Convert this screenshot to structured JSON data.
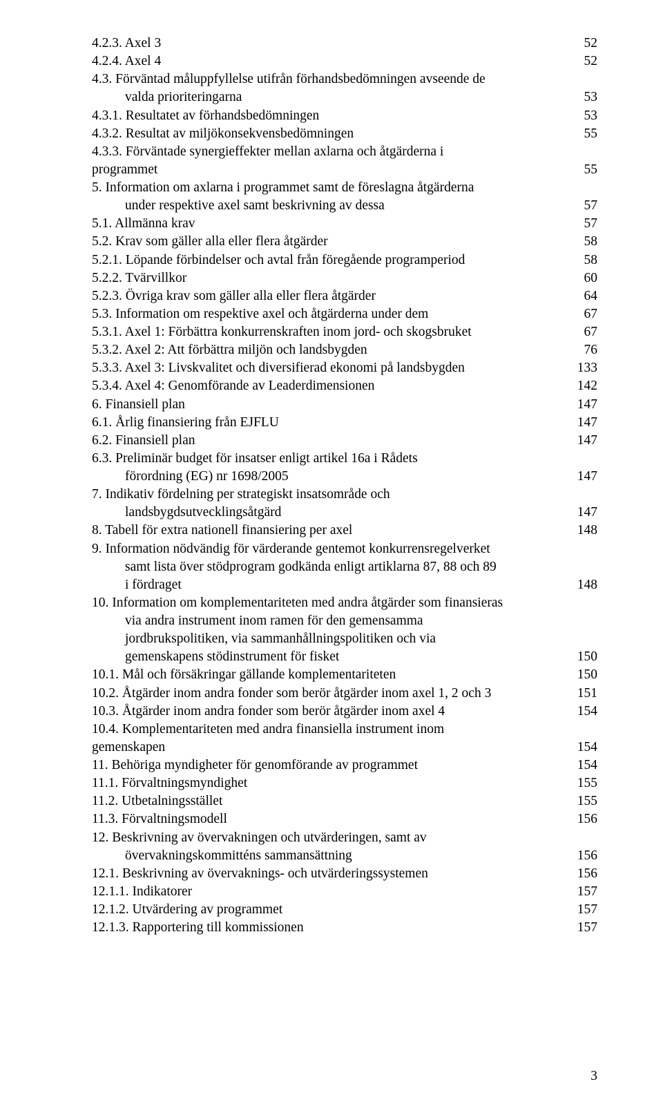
{
  "typography": {
    "font_family": "Times New Roman",
    "font_size_pt": 12,
    "line_height": 1.34,
    "text_color": "#000000",
    "background_color": "#ffffff"
  },
  "page_number": "3",
  "toc": [
    {
      "label": "4.2.3.  Axel 3",
      "page": "52",
      "indent": 0
    },
    {
      "label": "4.2.4.  Axel 4",
      "page": "52",
      "indent": 0
    },
    {
      "label": "4.3. Förväntad måluppfyllelse utifrån förhandsbedömningen avseende de",
      "page": "",
      "indent": 0
    },
    {
      "label": "valda prioriteringarna",
      "page": "53",
      "indent": 1
    },
    {
      "label": "4.3.1.  Resultatet av förhandsbedömningen",
      "page": "53",
      "indent": 0
    },
    {
      "label": "4.3.2.  Resultat av miljökonsekvensbedömningen",
      "page": "55",
      "indent": 0
    },
    {
      "label": "4.3.3.  Förväntade synergieffekter mellan axlarna och åtgärderna i",
      "page": "",
      "indent": 0
    },
    {
      "label": "programmet",
      "page": "55",
      "indent": 0
    },
    {
      "label": "5.   Information om axlarna i programmet samt de föreslagna åtgärderna",
      "page": "",
      "indent": 0
    },
    {
      "label": "under respektive axel samt beskrivning av dessa",
      "page": "57",
      "indent": 1
    },
    {
      "label": "5.1. Allmänna krav",
      "page": "57",
      "indent": 0
    },
    {
      "label": "5.2. Krav som gäller alla eller flera åtgärder",
      "page": "58",
      "indent": 0
    },
    {
      "label": "5.2.1.  Löpande förbindelser och avtal från föregående programperiod",
      "page": "58",
      "indent": 0
    },
    {
      "label": "5.2.2.  Tvärvillkor",
      "page": "60",
      "indent": 0
    },
    {
      "label": "5.2.3.  Övriga krav som gäller alla eller flera åtgärder",
      "page": "64",
      "indent": 0
    },
    {
      "label": "5.3. Information om respektive axel och åtgärderna under dem",
      "page": "67",
      "indent": 0
    },
    {
      "label": "5.3.1.   Axel 1: Förbättra konkurrenskraften inom jord- och skogsbruket",
      "page": "67",
      "indent": 0
    },
    {
      "label": "5.3.2.   Axel  2: Att förbättra miljön och landsbygden",
      "page": "76",
      "indent": 0
    },
    {
      "label": "5.3.3.   Axel 3: Livskvalitet och diversifierad ekonomi på landsbygden",
      "page": "133",
      "indent": 0
    },
    {
      "label": "5.3.4.   Axel 4: Genomförande av Leaderdimensionen",
      "page": "142",
      "indent": 0
    },
    {
      "label": "6.   Finansiell plan",
      "page": "147",
      "indent": 0
    },
    {
      "label": "6.1. Årlig finansiering från EJFLU",
      "page": "147",
      "indent": 0
    },
    {
      "label": "6.2. Finansiell plan",
      "page": "147",
      "indent": 0
    },
    {
      "label": "6.3. Preliminär budget för insatser enligt artikel 16a i Rådets",
      "page": "",
      "indent": 0
    },
    {
      "label": "förordning (EG) nr 1698/2005",
      "page": "147",
      "indent": 1
    },
    {
      "label": "7.   Indikativ fördelning per strategiskt insatsområde och",
      "page": "",
      "indent": 0
    },
    {
      "label": "landsbygdsutvecklingsåtgärd",
      "page": "147",
      "indent": 1
    },
    {
      "label": "8.   Tabell för extra nationell finansiering per axel",
      "page": "148",
      "indent": 0
    },
    {
      "label": "9.   Information nödvändig för värderande gentemot konkurrensregelverket",
      "page": "",
      "indent": 0
    },
    {
      "label": "samt lista över stödprogram godkända enligt artiklarna 87, 88 och 89",
      "page": "",
      "indent": 1
    },
    {
      "label": "i fördraget",
      "page": "148",
      "indent": 1
    },
    {
      "label": "10. Information om komplementariteten med andra åtgärder som finansieras",
      "page": "",
      "indent": 0
    },
    {
      "label": "via andra instrument inom ramen för den gemensamma",
      "page": "",
      "indent": 1
    },
    {
      "label": "jordbrukspolitiken, via sammanhållningspolitiken och via",
      "page": "",
      "indent": 1
    },
    {
      "label": "gemenskapens stödinstrument för fisket",
      "page": "150",
      "indent": 1
    },
    {
      "label": "10.1. Mål och försäkringar gällande komplementariteten",
      "page": "150",
      "indent": 0
    },
    {
      "label": "10.2. Åtgärder inom andra fonder som berör åtgärder inom axel 1, 2 och 3",
      "page": "151",
      "indent": 0
    },
    {
      "label": "10.3. Åtgärder inom andra fonder som berör åtgärder inom axel 4",
      "page": "154",
      "indent": 0
    },
    {
      "label": "10.4. Komplementariteten med andra finansiella instrument inom",
      "page": "",
      "indent": 0
    },
    {
      "label": "gemenskapen",
      "page": "154",
      "indent": 0
    },
    {
      "label": "11. Behöriga myndigheter för genomförande av programmet",
      "page": "154",
      "indent": 0
    },
    {
      "label": "11.1.     Förvaltningsmyndighet",
      "page": "155",
      "indent": 0
    },
    {
      "label": "11.2.     Utbetalningsstället",
      "page": "155",
      "indent": 0
    },
    {
      "label": "11.3.     Förvaltningsmodell",
      "page": "156",
      "indent": 0
    },
    {
      "label": "12. Beskrivning av övervakningen och utvärderingen, samt av",
      "page": "",
      "indent": 0
    },
    {
      "label": "övervakningskommitténs sammansättning",
      "page": "156",
      "indent": 1
    },
    {
      "label": "12.1.     Beskrivning av övervaknings- och utvärderingssystemen",
      "page": "156",
      "indent": 0
    },
    {
      "label": "12.1.1. Indikatorer",
      "page": "157",
      "indent": 0
    },
    {
      "label": "12.1.2. Utvärdering av programmet",
      "page": "157",
      "indent": 0
    },
    {
      "label": "12.1.3. Rapportering till kommissionen",
      "page": "157",
      "indent": 0
    }
  ]
}
